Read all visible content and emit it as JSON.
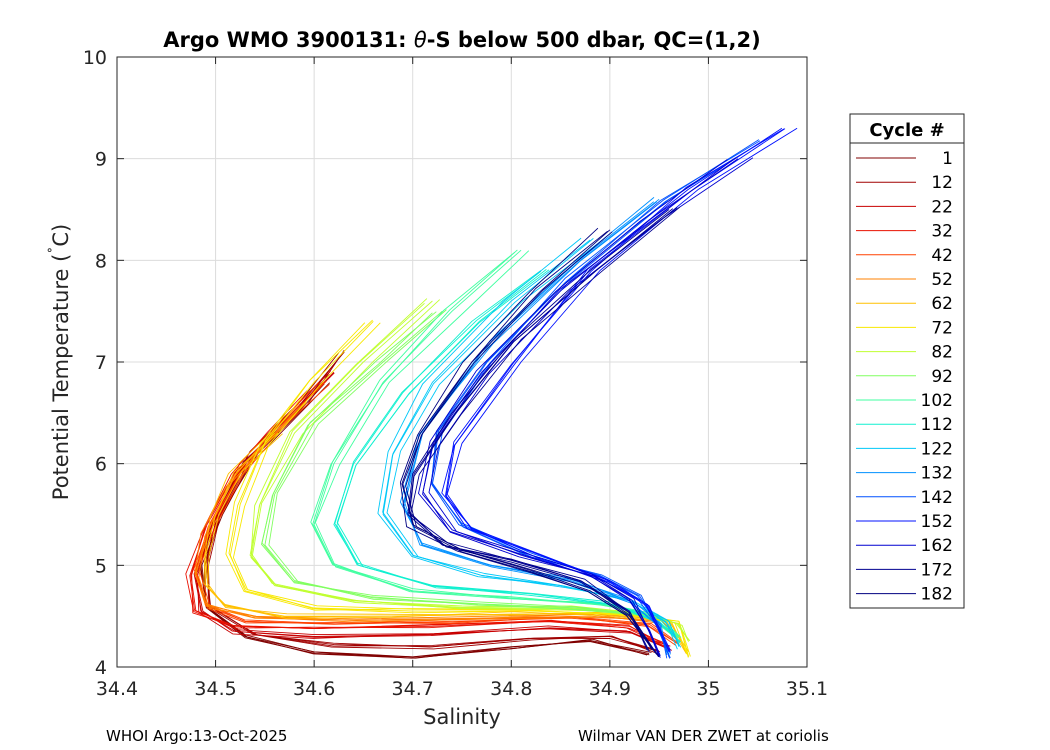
{
  "chart_data": {
    "type": "line",
    "title_prefix": "Argo WMO 3900131: ",
    "title_symbol": "θ",
    "title_suffix": "-S below 500 dbar,  QC=(1,2)",
    "xlabel": "Salinity",
    "ylabel_text": "Potential Temperature (",
    "ylabel_degree": "˚",
    "ylabel_unit": "C)",
    "xlim": [
      34.4,
      35.1
    ],
    "ylim": [
      4,
      10
    ],
    "xticks": [
      34.4,
      34.5,
      34.6,
      34.7,
      34.8,
      34.9,
      35,
      35.1
    ],
    "xtick_labels": [
      "34.4",
      "34.5",
      "34.6",
      "34.7",
      "34.8",
      "34.9",
      "35",
      "35.1"
    ],
    "yticks": [
      4,
      5,
      6,
      7,
      8,
      9,
      10
    ],
    "ytick_labels": [
      "4",
      "5",
      "6",
      "7",
      "8",
      "9",
      "10"
    ],
    "grid": true,
    "legend_position": "right",
    "legend": {
      "title": "Cycle #",
      "entries": [
        {
          "label": "1",
          "color": "#800000"
        },
        {
          "label": "12",
          "color": "#a00000"
        },
        {
          "label": "22",
          "color": "#c80000"
        },
        {
          "label": "32",
          "color": "#e81000"
        },
        {
          "label": "42",
          "color": "#ff4000"
        },
        {
          "label": "52",
          "color": "#ff8000"
        },
        {
          "label": "62",
          "color": "#ffc000"
        },
        {
          "label": "72",
          "color": "#f8e800"
        },
        {
          "label": "82",
          "color": "#c0ff30"
        },
        {
          "label": "92",
          "color": "#80ff60"
        },
        {
          "label": "102",
          "color": "#40ffa0"
        },
        {
          "label": "112",
          "color": "#10f0d0"
        },
        {
          "label": "122",
          "color": "#00c8f8"
        },
        {
          "label": "132",
          "color": "#0090ff"
        },
        {
          "label": "142",
          "color": "#0050ff"
        },
        {
          "label": "152",
          "color": "#0010ff"
        },
        {
          "label": "162",
          "color": "#0000d0"
        },
        {
          "label": "172",
          "color": "#000090"
        },
        {
          "label": "182",
          "color": "#000080"
        }
      ]
    },
    "series": [
      {
        "name": "1",
        "color": "#800000",
        "x": [
          34.61,
          34.57,
          34.53,
          34.5,
          34.485,
          34.49,
          34.53,
          34.6,
          34.7,
          34.8,
          34.88,
          34.94
        ],
        "y": [
          6.8,
          6.4,
          6.0,
          5.5,
          5.0,
          4.6,
          4.3,
          4.15,
          4.1,
          4.2,
          4.25,
          4.12
        ]
      },
      {
        "name": "12",
        "color": "#a00000",
        "x": [
          34.63,
          34.59,
          34.54,
          34.505,
          34.49,
          34.495,
          34.54,
          34.62,
          34.72,
          34.82,
          34.9,
          34.95
        ],
        "y": [
          7.1,
          6.6,
          6.1,
          5.5,
          5.0,
          4.6,
          4.32,
          4.22,
          4.2,
          4.28,
          4.3,
          4.15
        ]
      },
      {
        "name": "22",
        "color": "#c80000",
        "x": [
          34.62,
          34.58,
          34.53,
          34.5,
          34.48,
          34.485,
          34.52,
          34.6,
          34.72,
          34.84,
          34.92,
          34.96
        ],
        "y": [
          6.9,
          6.5,
          6.0,
          5.4,
          4.9,
          4.55,
          4.35,
          4.3,
          4.32,
          4.38,
          4.35,
          4.18
        ]
      },
      {
        "name": "32",
        "color": "#e81000",
        "x": [
          34.6,
          34.56,
          34.52,
          34.49,
          34.475,
          34.48,
          34.52,
          34.6,
          34.72,
          34.84,
          34.92,
          34.96
        ],
        "y": [
          6.7,
          6.3,
          5.9,
          5.4,
          4.9,
          4.55,
          4.4,
          4.38,
          4.4,
          4.45,
          4.4,
          4.2
        ]
      },
      {
        "name": "42",
        "color": "#ff4000",
        "x": [
          34.61,
          34.57,
          34.525,
          34.495,
          34.48,
          34.49,
          34.53,
          34.62,
          34.74,
          34.86,
          34.94,
          34.97
        ],
        "y": [
          6.8,
          6.4,
          5.9,
          5.4,
          4.95,
          4.6,
          4.45,
          4.42,
          4.45,
          4.48,
          4.42,
          4.22
        ]
      },
      {
        "name": "52",
        "color": "#ff8000",
        "x": [
          34.59,
          34.55,
          34.515,
          34.49,
          34.48,
          34.49,
          34.54,
          34.64,
          34.76,
          34.88,
          34.95,
          34.97
        ],
        "y": [
          6.6,
          6.2,
          5.8,
          5.3,
          4.9,
          4.6,
          4.48,
          4.46,
          4.48,
          4.5,
          4.45,
          4.25
        ]
      },
      {
        "name": "62",
        "color": "#ffc000",
        "x": [
          34.56,
          34.52,
          34.5,
          34.49,
          34.49,
          34.51,
          34.57,
          34.68,
          34.8,
          34.9,
          34.96,
          34.98
        ],
        "y": [
          6.3,
          5.9,
          5.5,
          5.1,
          4.8,
          4.6,
          4.5,
          4.5,
          4.52,
          4.52,
          4.45,
          4.15
        ]
      },
      {
        "name": "72",
        "color": "#f8e800",
        "x": [
          34.66,
          34.6,
          34.55,
          34.525,
          34.515,
          34.53,
          34.6,
          34.7,
          34.82,
          34.92,
          34.97,
          34.98
        ],
        "y": [
          7.4,
          6.8,
          6.2,
          5.6,
          5.1,
          4.75,
          4.58,
          4.55,
          4.55,
          4.52,
          4.45,
          4.1
        ]
      },
      {
        "name": "82",
        "color": "#c0ff30",
        "x": [
          34.72,
          34.65,
          34.58,
          34.545,
          34.535,
          34.56,
          34.64,
          34.75,
          34.86,
          34.94,
          34.97,
          34.98
        ],
        "y": [
          7.6,
          7.0,
          6.3,
          5.6,
          5.1,
          4.8,
          4.65,
          4.6,
          4.58,
          4.52,
          4.42,
          4.25
        ]
      },
      {
        "name": "92",
        "color": "#80ff60",
        "x": [
          34.73,
          34.67,
          34.6,
          34.56,
          34.55,
          34.58,
          34.66,
          34.77,
          34.87,
          34.94,
          34.97
        ],
        "y": [
          7.5,
          7.0,
          6.4,
          5.7,
          5.2,
          4.85,
          4.68,
          4.62,
          4.58,
          4.5,
          4.3
        ]
      },
      {
        "name": "102",
        "color": "#40ffa0",
        "x": [
          34.81,
          34.74,
          34.67,
          34.62,
          34.6,
          34.62,
          34.7,
          34.8,
          34.89,
          34.95,
          34.97
        ],
        "y": [
          8.1,
          7.5,
          6.8,
          6.0,
          5.4,
          5.0,
          4.75,
          4.68,
          4.62,
          4.5,
          4.3
        ]
      },
      {
        "name": "112",
        "color": "#10f0d0",
        "x": [
          34.83,
          34.76,
          34.69,
          34.64,
          34.62,
          34.645,
          34.72,
          34.82,
          34.9,
          34.95,
          34.97
        ],
        "y": [
          7.9,
          7.4,
          6.7,
          6.0,
          5.4,
          5.0,
          4.8,
          4.72,
          4.62,
          4.45,
          4.25
        ]
      },
      {
        "name": "122",
        "color": "#00c8f8",
        "x": [
          34.88,
          34.8,
          34.72,
          34.68,
          34.67,
          34.7,
          34.77,
          34.85,
          34.92,
          34.96,
          34.97
        ],
        "y": [
          8.2,
          7.6,
          6.8,
          6.1,
          5.5,
          5.1,
          4.9,
          4.8,
          4.65,
          4.45,
          4.2
        ]
      },
      {
        "name": "132",
        "color": "#0090ff",
        "x": [
          34.95,
          34.87,
          34.78,
          34.71,
          34.69,
          34.71,
          34.78,
          34.86,
          34.92,
          34.95,
          34.96
        ],
        "y": [
          8.6,
          8.0,
          7.2,
          6.3,
          5.6,
          5.2,
          5.0,
          4.85,
          4.65,
          4.4,
          4.12
        ]
      },
      {
        "name": "142",
        "color": "#0050ff",
        "x": [
          35.06,
          34.96,
          34.86,
          34.78,
          34.73,
          34.72,
          34.75,
          34.82,
          34.89,
          34.93,
          34.95,
          34.96
        ],
        "y": [
          9.2,
          8.6,
          7.8,
          7.0,
          6.3,
          5.8,
          5.4,
          5.1,
          4.9,
          4.7,
          4.4,
          4.1
        ]
      },
      {
        "name": "152",
        "color": "#0010ff",
        "x": [
          35.09,
          34.99,
          34.89,
          34.81,
          34.75,
          34.735,
          34.76,
          34.83,
          34.9,
          34.94,
          34.96
        ],
        "y": [
          9.3,
          8.7,
          7.9,
          7.0,
          6.2,
          5.7,
          5.35,
          5.1,
          4.85,
          4.6,
          4.15
        ]
      },
      {
        "name": "162",
        "color": "#0000d0",
        "x": [
          35.03,
          34.94,
          34.85,
          34.77,
          34.72,
          34.71,
          34.74,
          34.81,
          34.88,
          34.92,
          34.94,
          34.95
        ],
        "y": [
          9.0,
          8.4,
          7.7,
          6.9,
          6.2,
          5.7,
          5.35,
          5.1,
          4.9,
          4.65,
          4.35,
          4.1
        ]
      },
      {
        "name": "172",
        "color": "#000090",
        "x": [
          34.96,
          34.88,
          34.8,
          34.74,
          34.7,
          34.695,
          34.73,
          34.8,
          34.87,
          34.92,
          34.94
        ],
        "y": [
          8.5,
          7.9,
          7.2,
          6.5,
          5.9,
          5.5,
          5.2,
          5.05,
          4.85,
          4.55,
          4.15
        ]
      },
      {
        "name": "182",
        "color": "#000080",
        "x": [
          34.9,
          34.83,
          34.76,
          34.71,
          34.69,
          34.7,
          34.75,
          34.82,
          34.88,
          34.92,
          34.95
        ],
        "y": [
          8.3,
          7.7,
          7.0,
          6.3,
          5.8,
          5.4,
          5.15,
          4.95,
          4.75,
          4.5,
          4.1
        ]
      }
    ]
  },
  "footer": {
    "left": "WHOI Argo:13-Oct-2025",
    "right": "Wilmar VAN DER ZWET at coriolis"
  }
}
